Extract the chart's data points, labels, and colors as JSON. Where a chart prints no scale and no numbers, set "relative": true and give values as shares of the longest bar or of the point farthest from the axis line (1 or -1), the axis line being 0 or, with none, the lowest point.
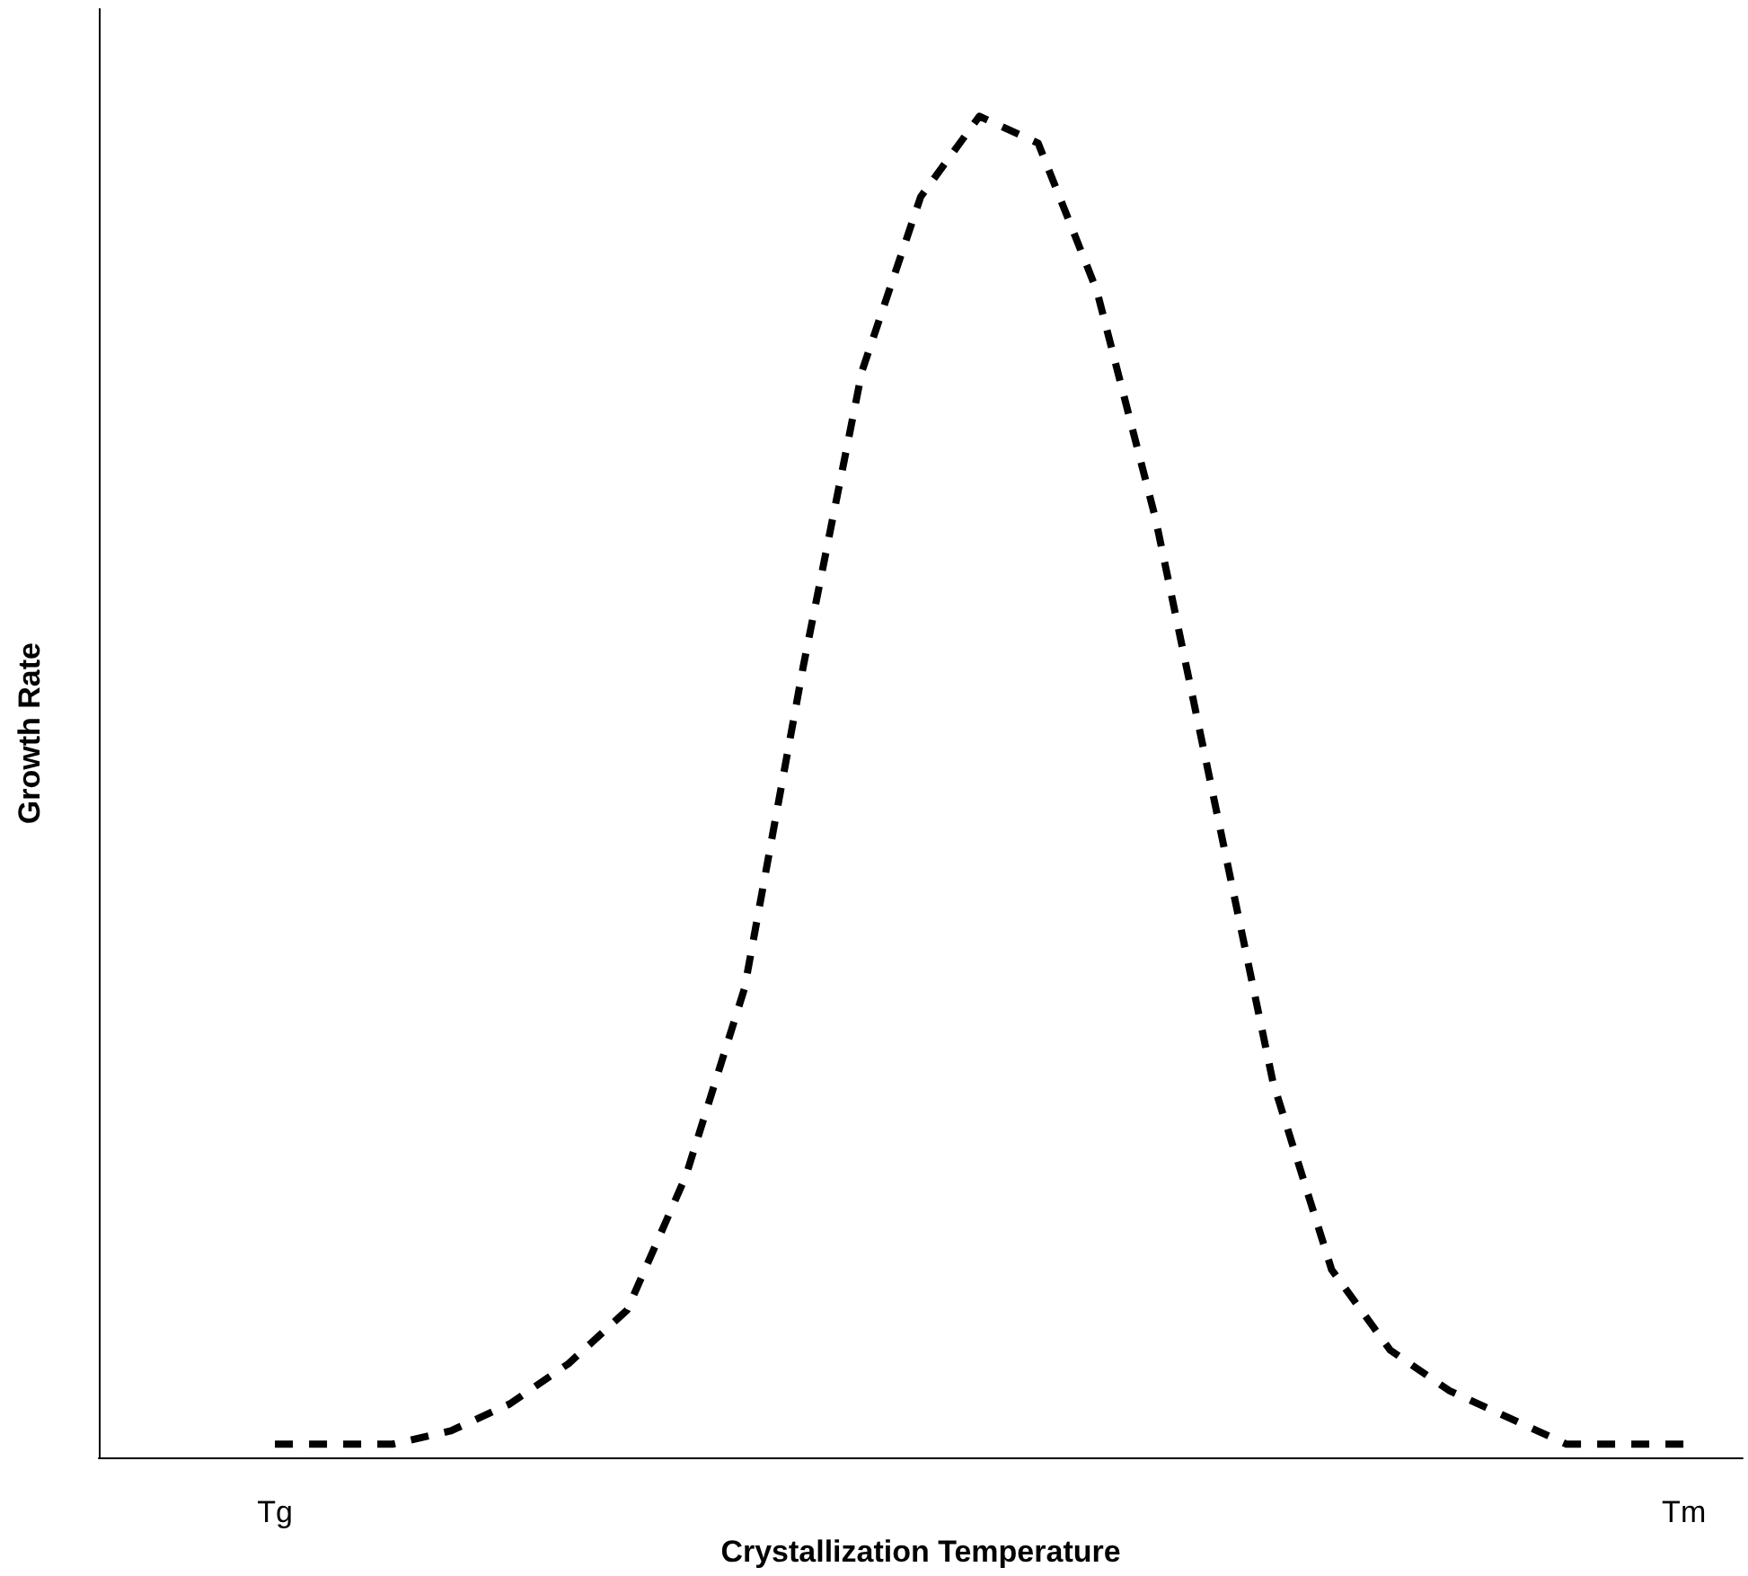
{
  "chart_data": {
    "type": "line",
    "xlabel": "Crystallization Temperature",
    "ylabel": "Growth Rate",
    "categories": [
      null,
      null,
      null,
      "Tg",
      null,
      null,
      null,
      null,
      null,
      null,
      null,
      null,
      null,
      null,
      null,
      null,
      null,
      null,
      null,
      null,
      null,
      null,
      null,
      null,
      null,
      null,
      null,
      "Tm",
      null
    ],
    "series": [
      {
        "color": "#000000",
        "values": [
          null,
          null,
          null,
          0.01,
          0.01,
          0.01,
          0.02,
          0.04,
          0.07,
          0.11,
          0.21,
          0.35,
          0.59,
          0.81,
          0.94,
          1,
          0.98,
          0.87,
          0.7,
          0.49,
          0.28,
          0.14,
          0.08,
          0.05,
          0.03,
          0.01,
          0.01,
          0.01,
          null
        ]
      }
    ],
    "relative": true,
    "marker": "none",
    "line_style": "dashed",
    "grid": false
  }
}
